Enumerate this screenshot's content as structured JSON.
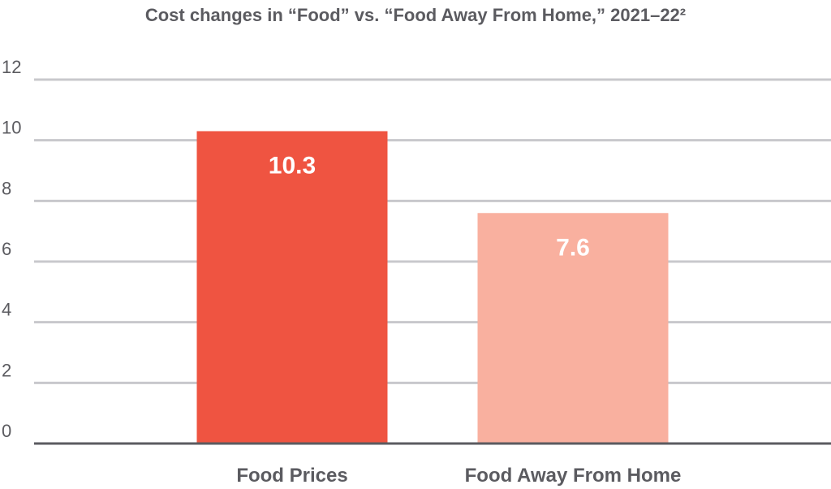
{
  "chart_data": {
    "type": "bar",
    "title": "Cost changes in “Food” vs. “Food Away From Home,” 2021–22²",
    "xlabel": "",
    "ylabel": "",
    "categories": [
      "Food Prices",
      "Food Away From Home"
    ],
    "values": [
      10.3,
      7.6
    ],
    "data_labels": [
      "10.3",
      "7.6"
    ],
    "bar_colors": [
      "#ef5441",
      "#f9b09f"
    ],
    "ylim": [
      0,
      12
    ],
    "yticks": [
      0,
      2,
      4,
      6,
      8,
      10,
      12
    ],
    "ytick_labels": [
      "0",
      "2",
      "4",
      "6",
      "8",
      "10",
      "12"
    ],
    "grid": true,
    "legend": "none"
  },
  "colors": {
    "gridline": "#c8c8cc",
    "axis": "#5b5b60",
    "text": "#5b5b60"
  }
}
